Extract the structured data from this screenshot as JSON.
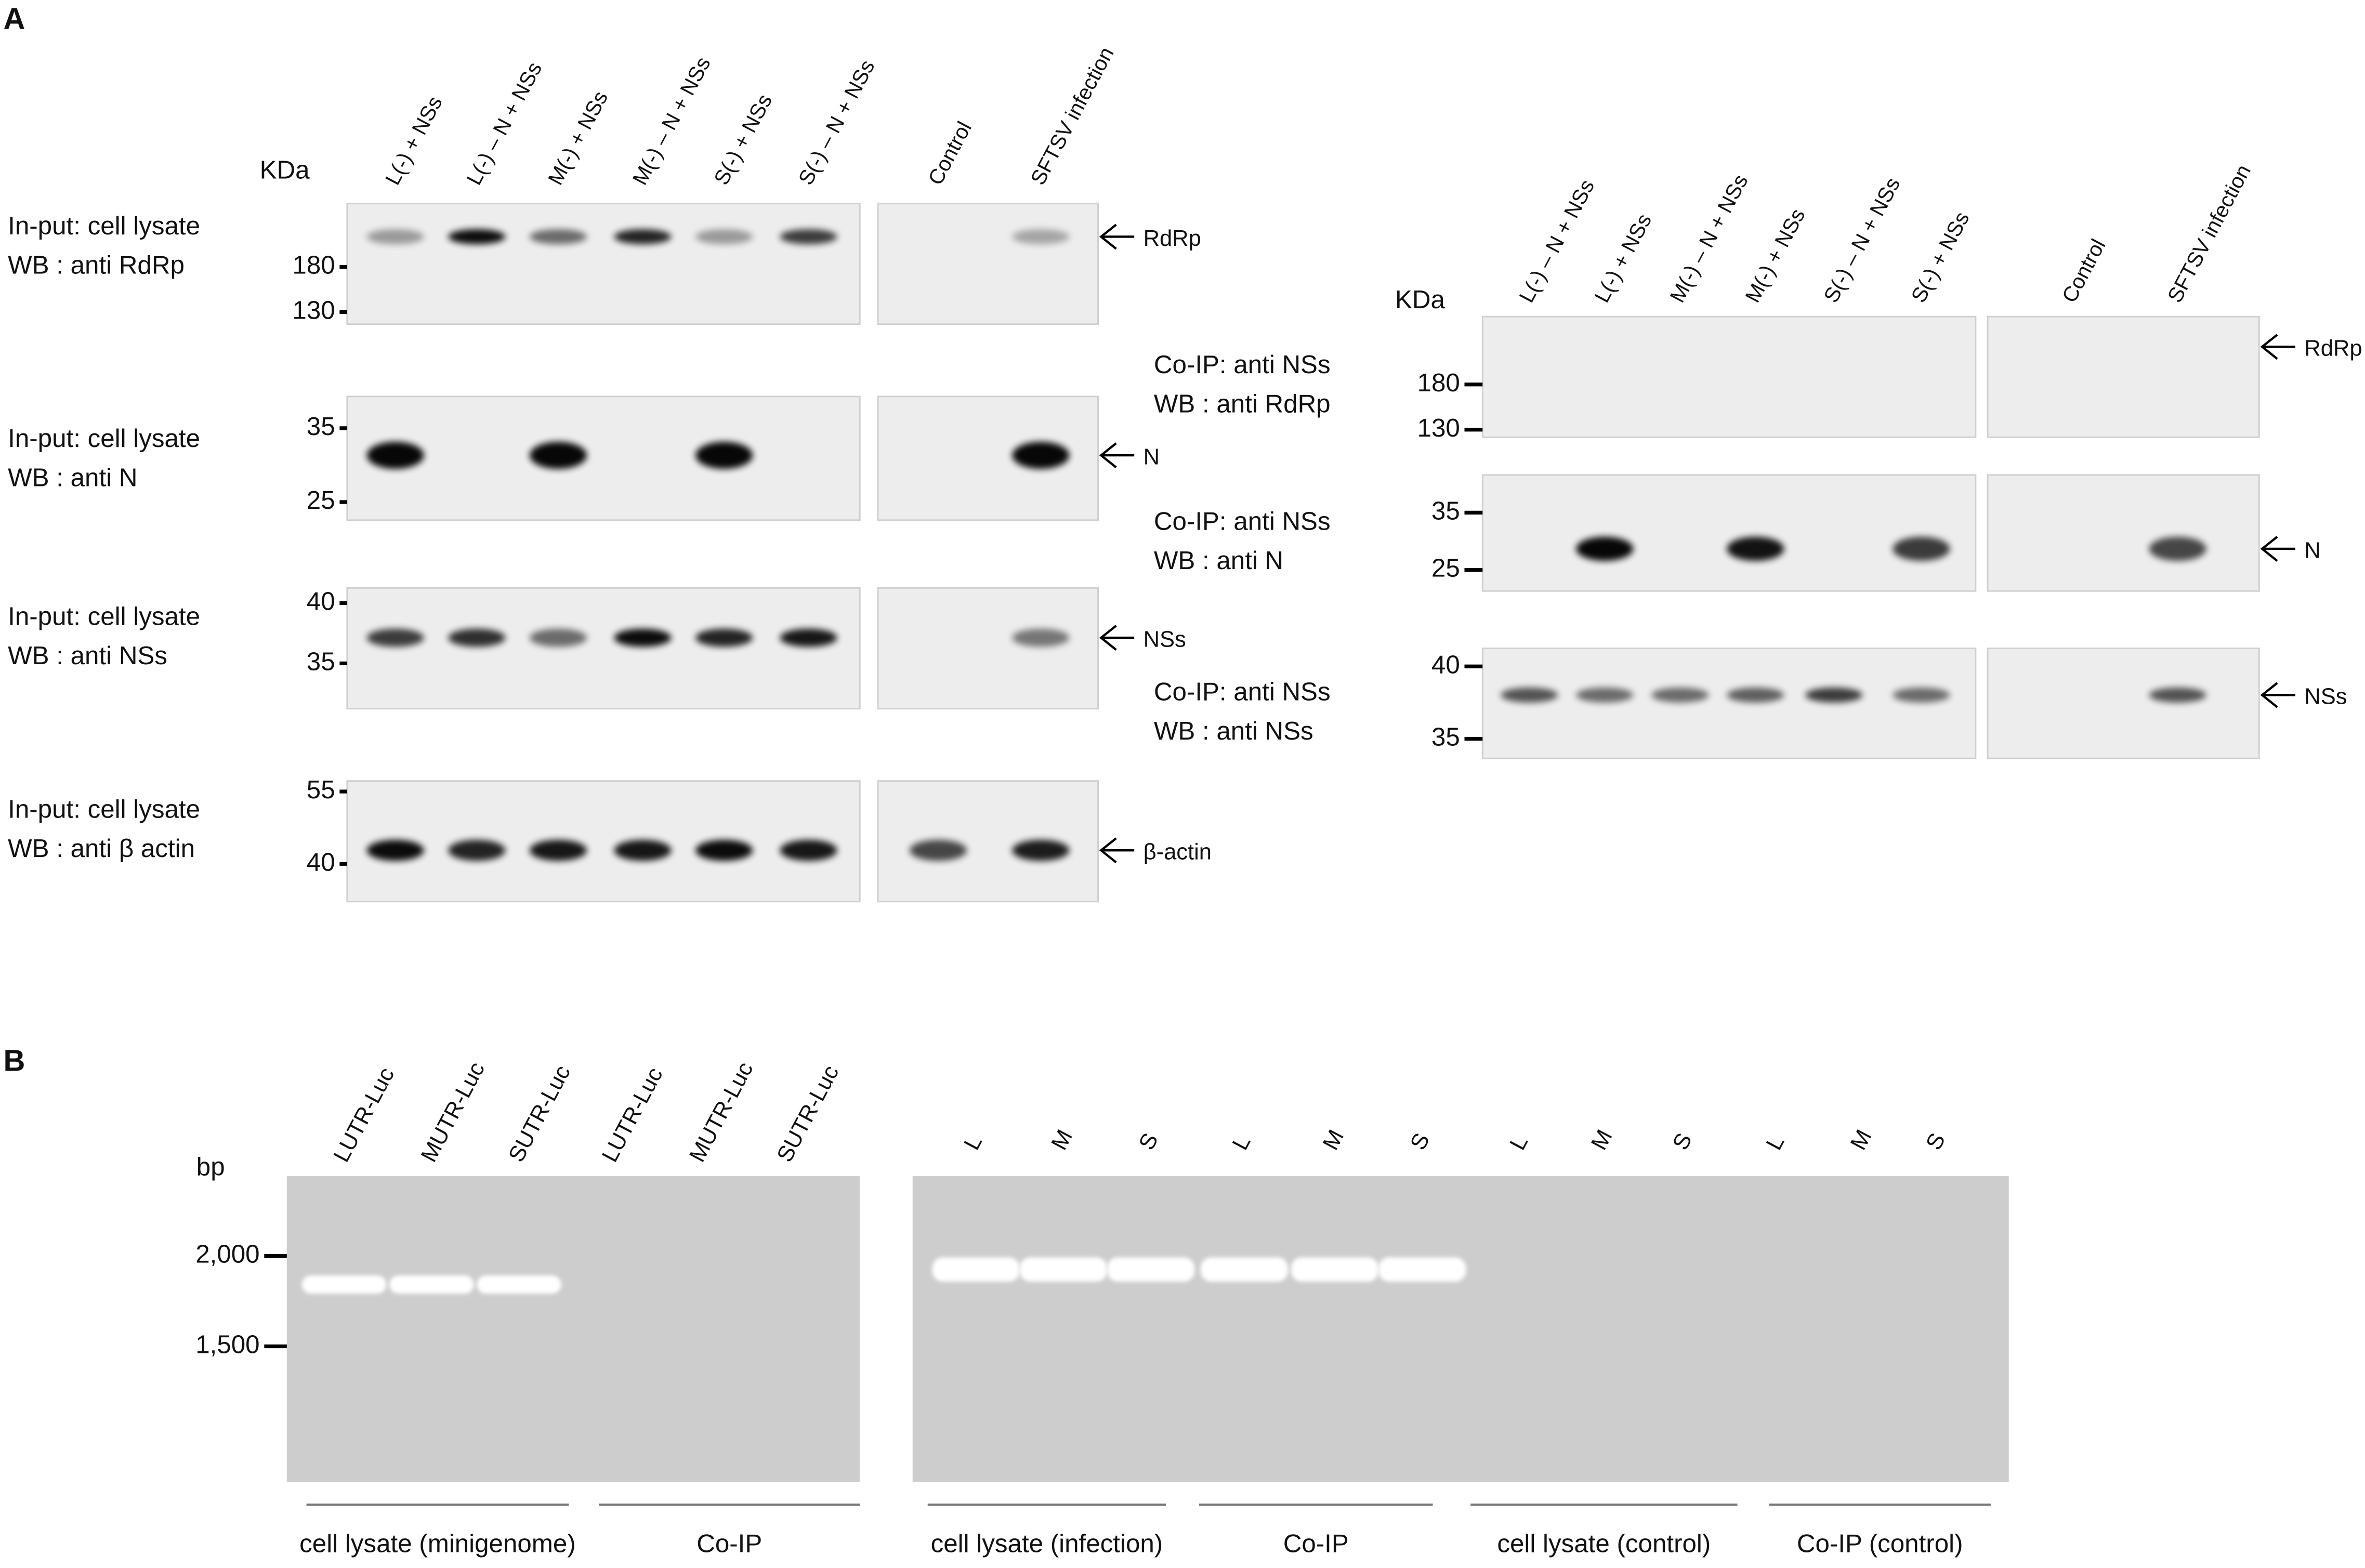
{
  "panel_a": {
    "label": "A",
    "left": {
      "unit": "KDa",
      "lanes": [
        "L(-) + NSs",
        "L(-) – N + NSs",
        "M(-) + NSs",
        "M(-) – N + NSs",
        "S(-) + NSs",
        "S(-) – N + NSs",
        "Control",
        "SFTSV infection"
      ],
      "blots": [
        {
          "line1": "In-put: cell lysate",
          "line2": "WB   :  anti RdRp",
          "markers": [
            "180",
            "130"
          ],
          "target": "RdRp"
        },
        {
          "line1": "In-put: cell lysate",
          "line2": "WB   : anti N",
          "markers": [
            "35",
            "25"
          ],
          "target": "N"
        },
        {
          "line1": "In-put: cell lysate",
          "line2": "WB   : anti NSs",
          "markers": [
            "40",
            "35"
          ],
          "target": "NSs"
        },
        {
          "line1": "In-put: cell lysate",
          "line2": "WB   :  anti β actin",
          "markers": [
            "55",
            "40"
          ],
          "target": "β-actin"
        }
      ]
    },
    "right": {
      "unit": "KDa",
      "lanes": [
        "L(-) – N + NSs",
        "L(-) + NSs",
        "M(-) – N + NSs",
        "M(-) + NSs",
        "S(-) – N + NSs",
        "S(-) + NSs",
        "Control",
        "SFTSV infection"
      ],
      "blots": [
        {
          "line1": "Co-IP:  anti NSs",
          "line2": "WB   :  anti RdRp",
          "markers": [
            "180",
            "130"
          ],
          "target": "RdRp"
        },
        {
          "line1": "Co-IP:  anti NSs",
          "line2": "WB   :  anti N",
          "markers": [
            "35",
            "25"
          ],
          "target": "N"
        },
        {
          "line1": "Co-IP:  anti NSs",
          "line2": "WB   :  anti NSs",
          "markers": [
            "40",
            "35"
          ],
          "target": "NSs"
        }
      ]
    }
  },
  "panel_b": {
    "label": "B",
    "unit": "bp",
    "markers": [
      "2,000",
      "1,500"
    ],
    "lanes_left": [
      "LUTR-Luc",
      "MUTR-Luc",
      "SUTR-Luc",
      "LUTR-Luc",
      "MUTR-Luc",
      "SUTR-Luc"
    ],
    "lanes_right": [
      "L",
      "M",
      "S",
      "L",
      "M",
      "S",
      "L",
      "M",
      "S",
      "L",
      "M",
      "S"
    ],
    "groups": [
      "cell lysate (minigenome)",
      "Co-IP",
      "cell lysate (infection)",
      "Co-IP",
      "cell lysate (control)",
      "Co-IP (control)"
    ]
  }
}
